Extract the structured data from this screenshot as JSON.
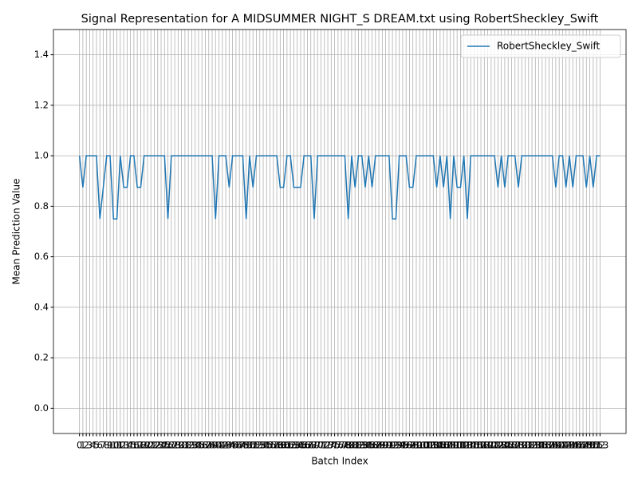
{
  "chart_data": {
    "type": "line",
    "title": "Signal Representation for A MIDSUMMER NIGHT_S DREAM.txt using RobertSheckley_Swift",
    "x_label": "Batch Index",
    "y_label": "Mean Prediction Value",
    "x": [
      0,
      1,
      2,
      3,
      4,
      5,
      6,
      7,
      8,
      9,
      10,
      11,
      12,
      13,
      14,
      15,
      16,
      17,
      18,
      19,
      20,
      21,
      22,
      23,
      24,
      25,
      26,
      27,
      28,
      29,
      30,
      31,
      32,
      33,
      34,
      35,
      36,
      37,
      38,
      39,
      40,
      41,
      42,
      43,
      44,
      45,
      46,
      47,
      48,
      49,
      50,
      51,
      52,
      53,
      54,
      55,
      56,
      57,
      58,
      59,
      60,
      61,
      62,
      63,
      64,
      65,
      66,
      67,
      68,
      69,
      70,
      71,
      72,
      73,
      74,
      75,
      76,
      77,
      78,
      79,
      80,
      81,
      82,
      83,
      84,
      85,
      86,
      87,
      88,
      89,
      90,
      91,
      92,
      93,
      94,
      95,
      96,
      97,
      98,
      99,
      100,
      101,
      102,
      103,
      104,
      105,
      106,
      107,
      108,
      109,
      110,
      111,
      112,
      113,
      114,
      115,
      116,
      117,
      118,
      119,
      120,
      121,
      122,
      123,
      124,
      125,
      126,
      127,
      128,
      129,
      130,
      131,
      132,
      133,
      134,
      135,
      136,
      137,
      138,
      139,
      140,
      141,
      142,
      143,
      144,
      145,
      146,
      147,
      148,
      149,
      150,
      151,
      152,
      153
    ],
    "series": [
      {
        "name": "RobertSheckley_Swift",
        "color": "#1f77b4",
        "values": [
          1,
          0.875,
          1,
          1,
          1,
          1,
          0.75,
          0.875,
          1,
          1,
          0.75,
          0.75,
          1,
          0.875,
          0.875,
          1,
          1,
          0.875,
          0.875,
          1,
          1,
          1,
          1,
          1,
          1,
          1,
          0.75,
          1,
          1,
          1,
          1,
          1,
          1,
          1,
          1,
          1,
          1,
          1,
          1,
          1,
          0.75,
          1,
          1,
          1,
          0.875,
          1,
          1,
          1,
          1,
          0.75,
          1,
          0.875,
          1,
          1,
          1,
          1,
          1,
          1,
          1,
          0.875,
          0.875,
          1,
          1,
          0.875,
          0.875,
          0.875,
          1,
          1,
          1,
          0.75,
          1,
          1,
          1,
          1,
          1,
          1,
          1,
          1,
          1,
          0.75,
          1,
          0.875,
          1,
          1,
          0.875,
          1,
          0.875,
          1,
          1,
          1,
          1,
          1,
          0.75,
          0.75,
          1,
          1,
          1,
          0.875,
          0.875,
          1,
          1,
          1,
          1,
          1,
          1,
          0.875,
          1,
          0.875,
          1,
          0.75,
          1,
          0.875,
          0.875,
          1,
          0.75,
          1,
          1,
          1,
          1,
          1,
          1,
          1,
          1,
          0.875,
          1,
          0.875,
          1,
          1,
          1,
          0.875,
          1,
          1,
          1,
          1,
          1,
          1,
          1,
          1,
          1,
          1,
          0.875,
          1,
          1,
          0.875,
          1,
          0.875,
          1,
          1,
          1,
          0.875,
          1,
          0.875,
          1,
          1
        ]
      }
    ],
    "xlim": [
      -7.65,
      160.65
    ],
    "xticks": [
      0,
      1,
      2,
      3,
      4,
      5,
      6,
      7,
      8,
      9,
      10,
      11,
      12,
      13,
      14,
      15,
      16,
      17,
      18,
      19,
      20,
      21,
      22,
      23,
      24,
      25,
      26,
      27,
      28,
      29,
      30,
      31,
      32,
      33,
      34,
      35,
      36,
      37,
      38,
      39,
      40,
      41,
      42,
      43,
      44,
      45,
      46,
      47,
      48,
      49,
      50,
      51,
      52,
      53,
      54,
      55,
      56,
      57,
      58,
      59,
      60,
      61,
      62,
      63,
      64,
      65,
      66,
      67,
      68,
      69,
      70,
      71,
      72,
      73,
      74,
      75,
      76,
      77,
      78,
      79,
      80,
      81,
      82,
      83,
      84,
      85,
      86,
      87,
      88,
      89,
      90,
      91,
      92,
      93,
      94,
      95,
      96,
      97,
      98,
      99,
      100,
      101,
      102,
      103,
      104,
      105,
      106,
      107,
      108,
      109,
      110,
      111,
      112,
      113,
      114,
      115,
      116,
      117,
      118,
      119,
      120,
      121,
      122,
      123,
      124,
      125,
      126,
      127,
      128,
      129,
      130,
      131,
      132,
      133,
      134,
      135,
      136,
      137,
      138,
      139,
      140,
      141,
      142,
      143,
      144,
      145,
      146,
      147,
      148,
      149,
      150,
      151,
      152,
      153
    ],
    "ylim": [
      -0.1,
      1.5
    ],
    "yticks": [
      {
        "value": 0,
        "label": "0.0"
      },
      {
        "value": 0.2,
        "label": "0.2"
      },
      {
        "value": 0.4,
        "label": "0.4"
      },
      {
        "value": 0.6,
        "label": "0.6"
      },
      {
        "value": 0.8,
        "label": "0.8"
      },
      {
        "value": 1,
        "label": "1.0"
      },
      {
        "value": 1.2,
        "label": "1.2"
      },
      {
        "value": 1.4,
        "label": "1.4"
      }
    ],
    "grid": true,
    "legend": "upper right"
  }
}
